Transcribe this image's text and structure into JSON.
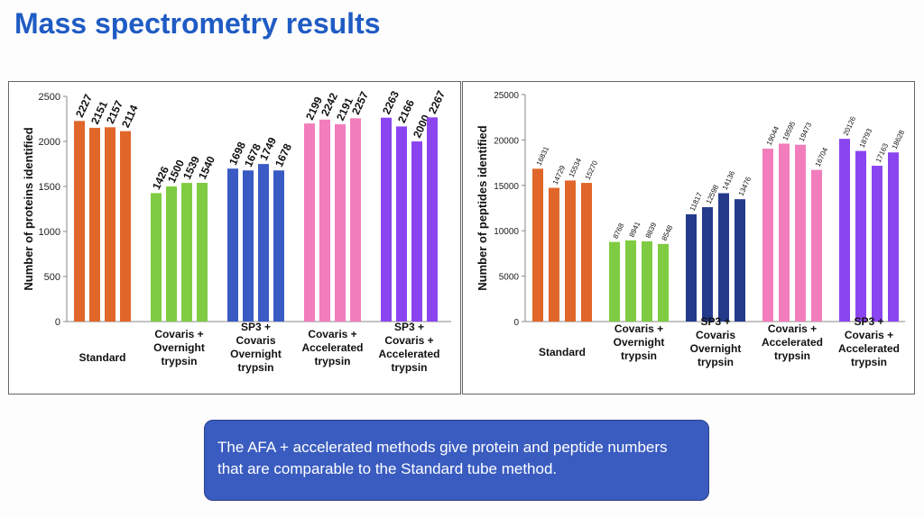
{
  "page": {
    "title": "Mass spectrometry results",
    "callout": "The AFA + accelerated methods give protein and peptide numbers that are comparable to the Standard tube method."
  },
  "chart_data": [
    {
      "type": "bar",
      "ylabel": "Number of proteins identified",
      "ylim": [
        0,
        2500
      ],
      "yticks": [
        0,
        500,
        1000,
        1500,
        2000,
        2500
      ],
      "groups": [
        {
          "label": [
            "Standard"
          ],
          "color": "#e0662a",
          "values": [
            2227,
            2151,
            2157,
            2114
          ]
        },
        {
          "label": [
            "Covaris +",
            "Overnight",
            "trypsin"
          ],
          "color": "#7fcc42",
          "values": [
            1426,
            1500,
            1539,
            1540
          ]
        },
        {
          "label": [
            "SP3 +",
            "Covaris",
            "Overnight",
            "trypsin"
          ],
          "color": "#3a5bc4",
          "values": [
            1698,
            1678,
            1749,
            1678
          ]
        },
        {
          "label": [
            "Covaris +",
            "Accelerated",
            "trypsin"
          ],
          "color": "#f27dbc",
          "values": [
            2199,
            2242,
            2191,
            2257
          ]
        },
        {
          "label": [
            "SP3 +",
            "Covaris +",
            "Accelerated",
            "trypsin"
          ],
          "color": "#8b45f0",
          "values": [
            2263,
            2166,
            2000,
            2267
          ]
        }
      ]
    },
    {
      "type": "bar",
      "ylabel": "Number of peptides identified",
      "ylim": [
        0,
        25000
      ],
      "yticks": [
        0,
        5000,
        10000,
        15000,
        20000,
        25000
      ],
      "groups": [
        {
          "label": [
            "Standard"
          ],
          "color": "#e0662a",
          "values": [
            16831,
            14729,
            15534,
            15270
          ]
        },
        {
          "label": [
            "Covaris +",
            "Overnight",
            "trypsin"
          ],
          "color": "#7fcc42",
          "values": [
            8768,
            8941,
            8839,
            8548
          ]
        },
        {
          "label": [
            "SP3 +",
            "Covaris",
            "Overnight",
            "trypsin"
          ],
          "color": "#243b8c",
          "values": [
            11817,
            12598,
            14136,
            13476
          ]
        },
        {
          "label": [
            "Covaris +",
            "Accelerated",
            "trypsin"
          ],
          "color": "#f27dbc",
          "values": [
            19044,
            19595,
            19473,
            16704
          ]
        },
        {
          "label": [
            "SP3 +",
            "Covaris +",
            "Accelerated",
            "trypsin"
          ],
          "color": "#8b45f0",
          "values": [
            20126,
            18793,
            17163,
            18628
          ]
        }
      ]
    }
  ]
}
